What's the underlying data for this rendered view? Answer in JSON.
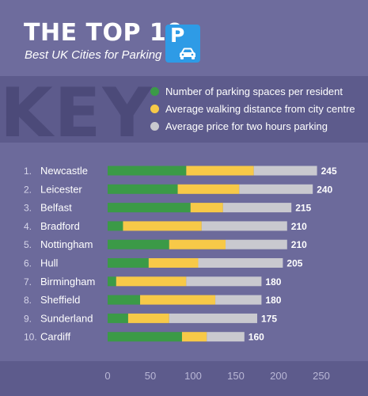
{
  "header": {
    "title": "THE TOP 10",
    "subtitle": "Best UK Cities for Parking",
    "logo_letter": "P",
    "logo_icon": "car-icon"
  },
  "key": {
    "word": "KEY",
    "items": [
      {
        "label": "Number of parking spaces per resident",
        "color": "#3b9a47"
      },
      {
        "label": "Average walking distance from city centre",
        "color": "#f7c948"
      },
      {
        "label": "Average price for two hours parking",
        "color": "#c9c9cf"
      }
    ]
  },
  "chart_data": {
    "type": "bar",
    "orientation": "horizontal",
    "stacked": true,
    "categories": [
      "Newcastle",
      "Leicester",
      "Belfast",
      "Bradford",
      "Nottingham",
      "Hull",
      "Birmingham",
      "Sheffield",
      "Sunderland",
      "Cardiff"
    ],
    "ranks": [
      "1.",
      "2.",
      "3.",
      "4.",
      "5.",
      "6.",
      "7.",
      "8.",
      "9.",
      "10."
    ],
    "series": [
      {
        "name": "Number of parking spaces per resident",
        "color": "#3b9a47",
        "values": [
          92,
          82,
          97,
          18,
          72,
          48,
          10,
          38,
          24,
          87
        ]
      },
      {
        "name": "Average walking distance from city centre",
        "color": "#f7c948",
        "values": [
          79,
          72,
          38,
          92,
          66,
          58,
          82,
          88,
          48,
          29
        ]
      },
      {
        "name": "Average price for two hours parking",
        "color": "#c9c9cf",
        "values": [
          74,
          86,
          80,
          100,
          72,
          99,
          88,
          54,
          103,
          44
        ]
      }
    ],
    "totals": [
      245,
      240,
      215,
      210,
      210,
      205,
      180,
      180,
      175,
      160
    ],
    "x_ticks": [
      "0",
      "50",
      "100",
      "150",
      "200",
      "250"
    ],
    "xlim": [
      0,
      250
    ],
    "grid": false,
    "legend": "top"
  }
}
